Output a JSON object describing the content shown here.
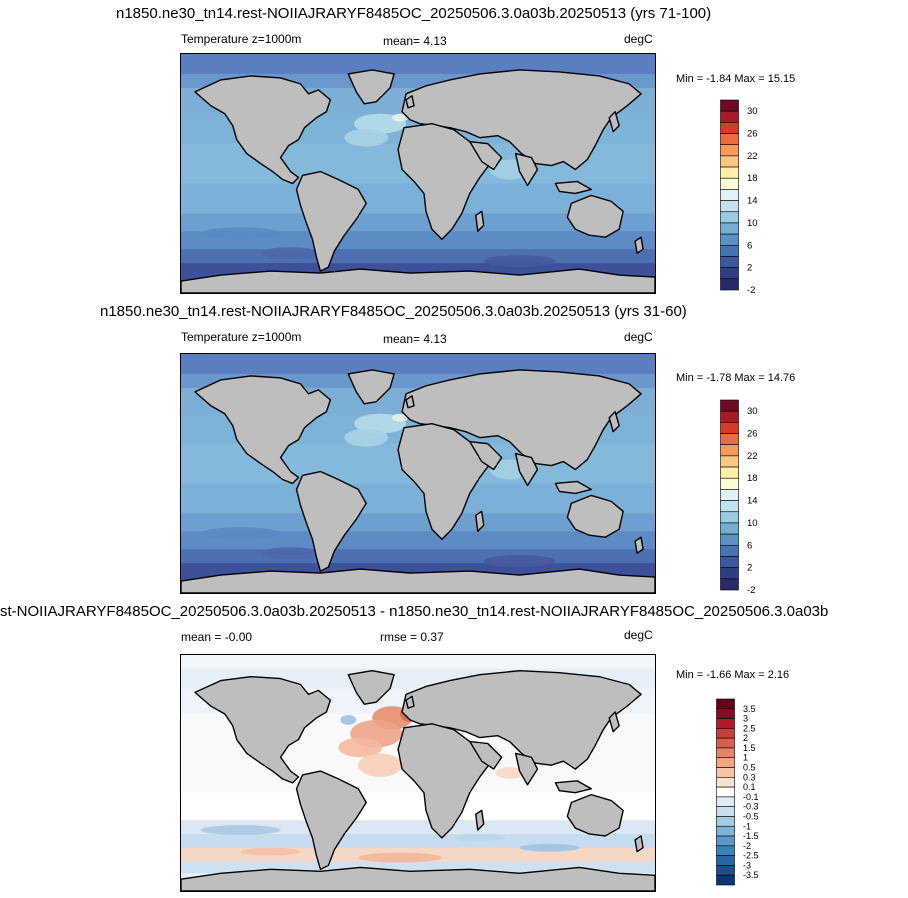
{
  "panels": [
    {
      "title": "n1850.ne30_tn14.rest-NOIIAJRARYF8485OC_20250506.3.0a03b.20250513 (yrs 71-100)",
      "left_label": "Temperature z=1000m",
      "center_label": "mean=   4.13",
      "units": "degC",
      "minmax": "Min =  -1.84 Max =  15.15",
      "colorbar": {
        "labels": [
          "30",
          "26",
          "22",
          "18",
          "14",
          "10",
          "6",
          "2",
          "-2"
        ],
        "colors": [
          "#6e0b22",
          "#a51b27",
          "#d63a28",
          "#ef6a3c",
          "#f69a5a",
          "#fbc681",
          "#fdeeaa",
          "#fbfbd8",
          "#e2f1f3",
          "#c2e2ee",
          "#99cbe2",
          "#74afd3",
          "#5b91c5",
          "#4474b4",
          "#3a58a0",
          "#2e3e82",
          "#2a2a66"
        ]
      }
    },
    {
      "title": "n1850.ne30_tn14.rest-NOIIAJRARYF8485OC_20250506.3.0a03b.20250513 (yrs 31-60)",
      "left_label": "Temperature z=1000m",
      "center_label": "mean=   4.13",
      "units": "degC",
      "minmax": "Min =  -1.78 Max =  14.76",
      "colorbar": {
        "labels": [
          "30",
          "26",
          "22",
          "18",
          "14",
          "10",
          "6",
          "2",
          "-2"
        ],
        "colors": [
          "#6e0b22",
          "#a51b27",
          "#d63a28",
          "#ef6a3c",
          "#f69a5a",
          "#fbc681",
          "#fdeeaa",
          "#fbfbd8",
          "#e2f1f3",
          "#c2e2ee",
          "#99cbe2",
          "#74afd3",
          "#5b91c5",
          "#4474b4",
          "#3a58a0",
          "#2e3e82",
          "#2a2a66"
        ]
      }
    },
    {
      "title": "st-NOIIAJRARYF8485OC_20250506.3.0a03b.20250513 - n1850.ne30_tn14.rest-NOIIAJRARYF8485OC_20250506.3.0a03b",
      "left_label": "mean =  -0.00",
      "center_label": "rmse =   0.37",
      "units": "degC",
      "minmax": "Min =  -1.66 Max =   2.16",
      "colorbar": {
        "labels": [
          "3.5",
          "3",
          "2.5",
          "2",
          "1.5",
          "1",
          "0.5",
          "0.3",
          "0.1",
          "-0.1",
          "-0.3",
          "-0.5",
          "-1",
          "-1.5",
          "-2",
          "-2.5",
          "-3",
          "-3.5"
        ],
        "colors": [
          "#67001f",
          "#8c0a26",
          "#b2182b",
          "#c93c3c",
          "#d6604d",
          "#e58267",
          "#f4a582",
          "#f8c4a8",
          "#fbe1d2",
          "#ffffff",
          "#e0ecf4",
          "#c8dff0",
          "#a5cbe3",
          "#7fb2d6",
          "#5a98c8",
          "#3d7fb9",
          "#2a65a4",
          "#1b4d8b",
          "#0c3573"
        ]
      }
    }
  ]
}
